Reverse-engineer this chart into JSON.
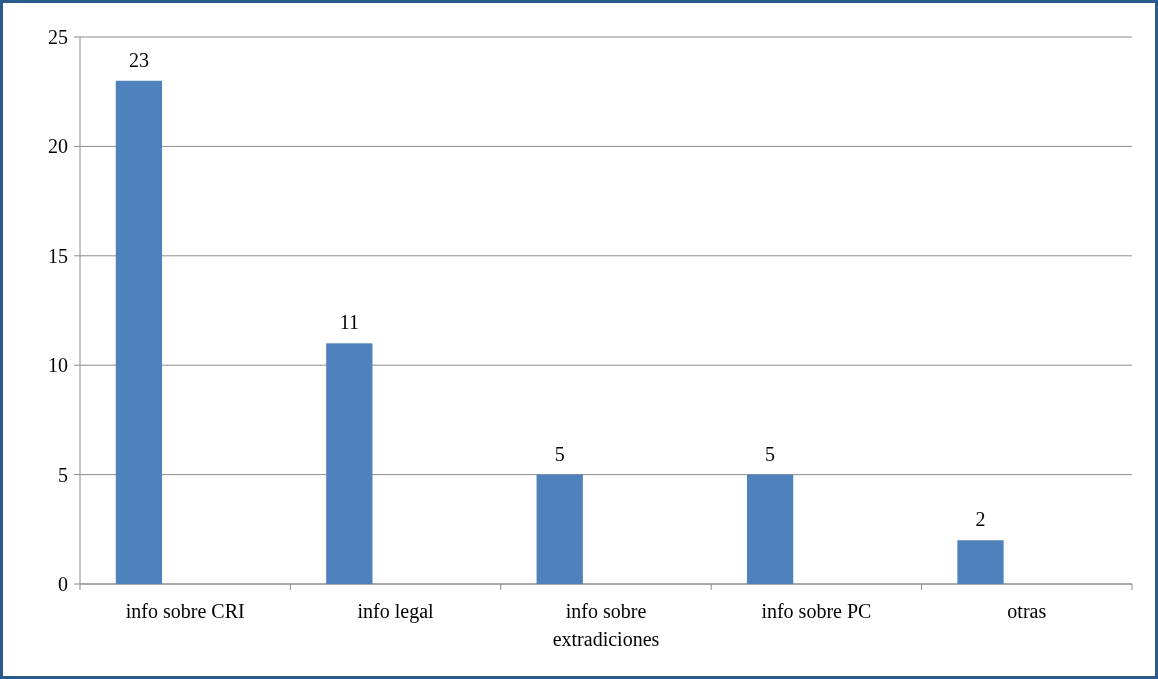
{
  "chart_data": {
    "type": "bar",
    "categories": [
      "info sobre CRI",
      "info legal",
      "info sobre extradiciones",
      "info sobre PC",
      "otras"
    ],
    "values": [
      23,
      11,
      5,
      5,
      2
    ],
    "color": "#4f81bd",
    "ylim": [
      0,
      25
    ],
    "yticks": [
      0,
      5,
      10,
      15,
      20,
      25
    ],
    "grid": "y",
    "data_labels": true
  }
}
